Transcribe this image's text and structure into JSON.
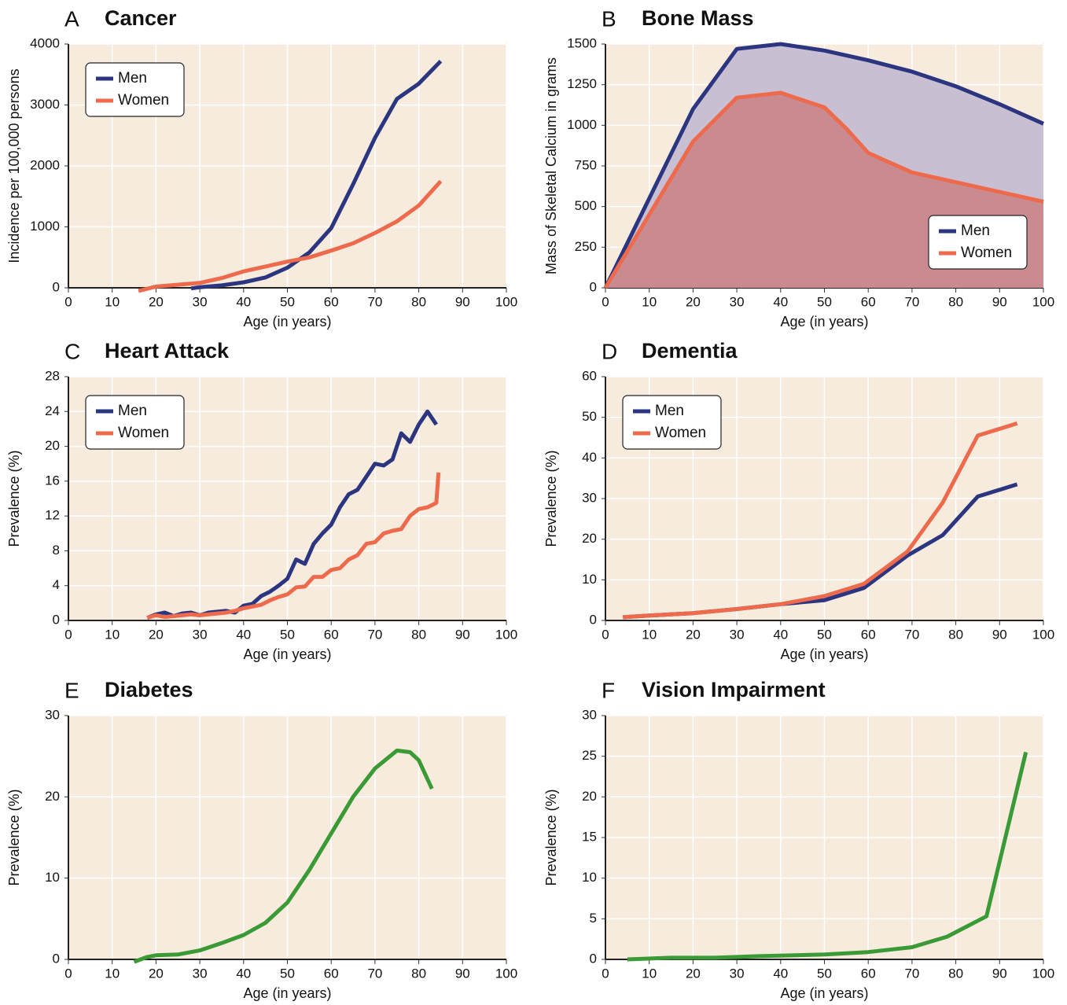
{
  "chart_data": [
    {
      "type": "line",
      "label": "A",
      "title": "Cancer",
      "xlabel": "Age (in years)",
      "ylabel": "Incidence per 100,000 persons",
      "legend": "top-left",
      "xlim": [
        0,
        100
      ],
      "ylim": [
        0,
        4000
      ],
      "xticks": [
        0,
        10,
        20,
        30,
        40,
        50,
        60,
        70,
        80,
        90,
        100
      ],
      "yticks": [
        0,
        1000,
        2000,
        3000,
        4000
      ],
      "series": [
        {
          "name": "Men",
          "color": "#2b3580",
          "x": [
            28,
            30,
            35,
            40,
            45,
            50,
            55,
            60,
            65,
            70,
            75,
            80,
            85
          ],
          "values": [
            -10,
            10,
            40,
            90,
            170,
            330,
            580,
            980,
            1700,
            2460,
            3100,
            3350,
            3720
          ]
        },
        {
          "name": "Women",
          "color": "#ee6a4c",
          "x": [
            16,
            20,
            30,
            35,
            40,
            45,
            50,
            55,
            60,
            65,
            70,
            75,
            80,
            85
          ],
          "values": [
            -50,
            20,
            80,
            160,
            270,
            350,
            430,
            500,
            610,
            730,
            900,
            1090,
            1350,
            1750
          ]
        }
      ]
    },
    {
      "type": "area",
      "label": "B",
      "title": "Bone Mass",
      "xlabel": "Age (in years)",
      "ylabel": "Mass of Skeletal Calcium in grams",
      "legend": "bottom-right",
      "xlim": [
        0,
        100
      ],
      "ylim": [
        0,
        1500
      ],
      "xticks": [
        0,
        10,
        20,
        30,
        40,
        50,
        60,
        70,
        80,
        90,
        100
      ],
      "yticks": [
        0,
        250,
        500,
        750,
        1000,
        1250,
        1500
      ],
      "series": [
        {
          "name": "Men",
          "color": "#2b3580",
          "fill": "#c9bfd3",
          "x": [
            0,
            10,
            20,
            30,
            40,
            50,
            60,
            70,
            80,
            90,
            100
          ],
          "values": [
            0,
            550,
            1100,
            1470,
            1500,
            1460,
            1400,
            1330,
            1240,
            1130,
            1010
          ]
        },
        {
          "name": "Women",
          "color": "#ee6a4c",
          "fill": "#c98b90",
          "x": [
            0,
            10,
            20,
            30,
            40,
            50,
            55,
            60,
            70,
            80,
            90,
            100
          ],
          "values": [
            0,
            450,
            900,
            1170,
            1200,
            1110,
            980,
            830,
            710,
            650,
            590,
            530
          ]
        }
      ]
    },
    {
      "type": "line",
      "label": "C",
      "title": "Heart Attack",
      "xlabel": "Age (in years)",
      "ylabel": "Prevalence (%)",
      "legend": "top-left",
      "xlim": [
        0,
        100
      ],
      "ylim": [
        0,
        28
      ],
      "xticks": [
        0,
        10,
        20,
        30,
        40,
        50,
        60,
        70,
        80,
        90,
        100
      ],
      "yticks": [
        0,
        4,
        8,
        12,
        16,
        20,
        24,
        28
      ],
      "series": [
        {
          "name": "Men",
          "color": "#2b3580",
          "x": [
            18,
            20,
            22,
            24,
            26,
            28,
            30,
            32,
            34,
            36,
            38,
            40,
            42,
            44,
            46,
            48,
            50,
            52,
            54,
            56,
            58,
            60,
            62,
            64,
            66,
            68,
            70,
            72,
            74,
            76,
            78,
            80,
            82,
            84
          ],
          "values": [
            0.3,
            0.7,
            0.9,
            0.5,
            0.8,
            0.9,
            0.6,
            0.9,
            1.0,
            1.1,
            0.9,
            1.7,
            1.9,
            2.8,
            3.3,
            4.0,
            4.8,
            7.0,
            6.5,
            8.8,
            10.0,
            11.0,
            13.0,
            14.5,
            15.0,
            16.5,
            18.0,
            17.8,
            18.5,
            21.5,
            20.5,
            22.5,
            24.0,
            22.5
          ]
        },
        {
          "name": "Women",
          "color": "#ee6a4c",
          "x": [
            18,
            20,
            22,
            24,
            26,
            28,
            30,
            32,
            34,
            36,
            38,
            40,
            42,
            44,
            46,
            48,
            50,
            52,
            54,
            56,
            58,
            60,
            62,
            64,
            66,
            68,
            70,
            72,
            74,
            76,
            78,
            80,
            82,
            84,
            84.5
          ],
          "values": [
            0.3,
            0.6,
            0.4,
            0.5,
            0.6,
            0.7,
            0.6,
            0.7,
            0.8,
            0.9,
            1.1,
            1.4,
            1.6,
            1.8,
            2.3,
            2.7,
            3.0,
            3.8,
            3.9,
            5.0,
            5.0,
            5.8,
            6.0,
            7.0,
            7.5,
            8.8,
            9.0,
            10.0,
            10.3,
            10.5,
            12.0,
            12.8,
            13.0,
            13.5,
            17.0
          ]
        }
      ]
    },
    {
      "type": "line",
      "label": "D",
      "title": "Dementia",
      "xlabel": "Age (in years)",
      "ylabel": "Prevalence (%)",
      "legend": "top-left",
      "xlim": [
        0,
        100
      ],
      "ylim": [
        0,
        60
      ],
      "xticks": [
        0,
        10,
        20,
        30,
        40,
        50,
        60,
        70,
        80,
        90,
        100
      ],
      "yticks": [
        0,
        10,
        20,
        30,
        40,
        50,
        60
      ],
      "series": [
        {
          "name": "Men",
          "color": "#2b3580",
          "x": [
            4,
            10,
            20,
            30,
            40,
            50,
            59,
            69,
            77,
            85,
            94
          ],
          "values": [
            0.8,
            1.2,
            1.8,
            2.8,
            4,
            5,
            8,
            16,
            21,
            30.5,
            33.5
          ]
        },
        {
          "name": "Women",
          "color": "#ee6a4c",
          "x": [
            4,
            10,
            20,
            30,
            40,
            50,
            59,
            69,
            77,
            85,
            94
          ],
          "values": [
            0.8,
            1.2,
            1.8,
            2.8,
            4,
            6,
            9,
            17,
            29,
            45.5,
            48.5
          ]
        }
      ]
    },
    {
      "type": "line",
      "label": "E",
      "title": "Diabetes",
      "xlabel": "Age (in years)",
      "ylabel": "Prevalence (%)",
      "xlim": [
        0,
        100
      ],
      "ylim": [
        0,
        30
      ],
      "xticks": [
        0,
        10,
        20,
        30,
        40,
        50,
        60,
        70,
        80,
        90,
        100
      ],
      "yticks": [
        0,
        10,
        20,
        30
      ],
      "color": "#3a9a35",
      "x": [
        15,
        18,
        20,
        25,
        30,
        35,
        40,
        45,
        50,
        55,
        60,
        65,
        70,
        75,
        78,
        80,
        83
      ],
      "values": [
        -0.3,
        0.3,
        0.5,
        0.6,
        1.1,
        2,
        3,
        4.5,
        7,
        11,
        15.5,
        20,
        23.5,
        25.7,
        25.5,
        24.5,
        21
      ]
    },
    {
      "type": "line",
      "label": "F",
      "title": "Vision Impairment",
      "xlabel": "Age (in years)",
      "ylabel": "Prevalence (%)",
      "xlim": [
        0,
        100
      ],
      "ylim": [
        0,
        30
      ],
      "xticks": [
        0,
        10,
        20,
        30,
        40,
        50,
        60,
        70,
        80,
        90,
        100
      ],
      "yticks": [
        0,
        5,
        10,
        15,
        20,
        25,
        30
      ],
      "color": "#3a9a35",
      "x": [
        5,
        15,
        25,
        35,
        50,
        60,
        70,
        78,
        87,
        96
      ],
      "values": [
        0,
        0.2,
        0.2,
        0.4,
        0.6,
        0.9,
        1.5,
        2.8,
        5.3,
        25.5
      ]
    }
  ]
}
